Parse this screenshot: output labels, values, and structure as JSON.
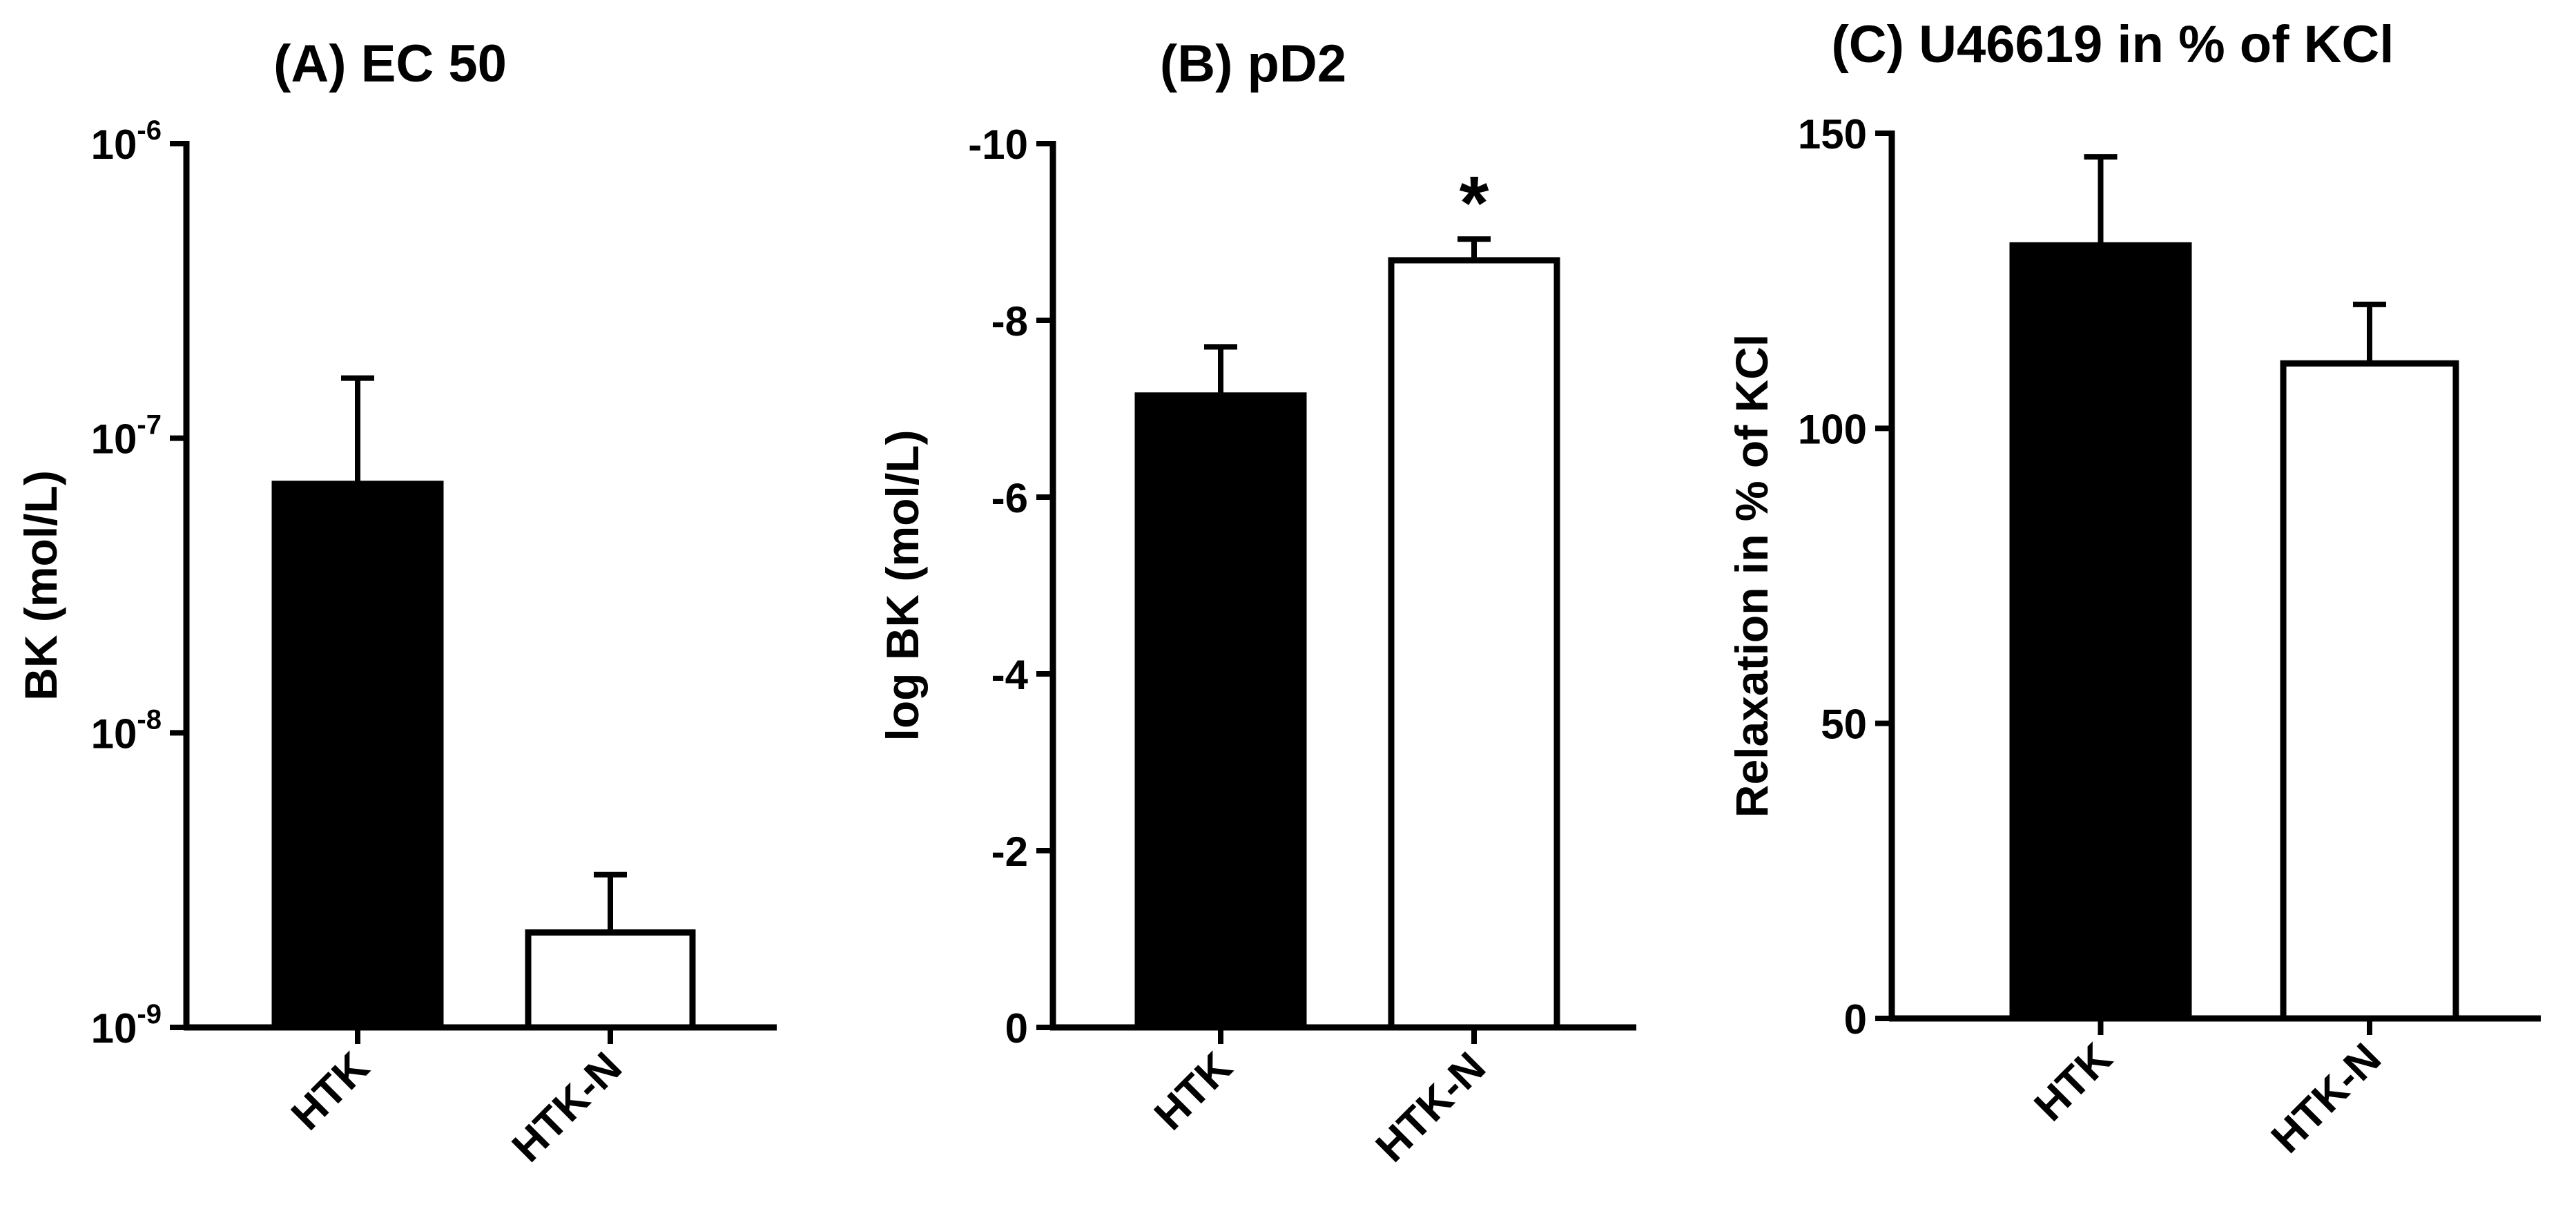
{
  "chart_data": [
    {
      "type": "bar",
      "title": "(A) EC 50",
      "xlabel": "",
      "ylabel": "BK (mol/L)",
      "yscale": "log",
      "ylim": [
        1e-09,
        1e-06
      ],
      "yticks": [
        {
          "value": 1e-09,
          "base": "10",
          "exp": "-9"
        },
        {
          "value": 1e-08,
          "base": "10",
          "exp": "-8"
        },
        {
          "value": 1e-07,
          "base": "10",
          "exp": "-7"
        },
        {
          "value": 1e-06,
          "base": "10",
          "exp": "-6"
        }
      ],
      "categories": [
        "HTK",
        "HTK-N"
      ],
      "values": [
        7e-08,
        2.1e-09
      ],
      "error_upper": [
        1.6e-07,
        3.3e-09
      ],
      "bar_fills": [
        "#000000",
        "#ffffff"
      ],
      "annotations": [
        null,
        null
      ]
    },
    {
      "type": "bar",
      "title": "(B) pD2",
      "xlabel": "",
      "ylabel": "log BK (mol/L)",
      "yscale": "linear",
      "ylim": [
        0,
        -10
      ],
      "yticks": [
        {
          "value": 0,
          "label": "0"
        },
        {
          "value": -2,
          "label": "-2"
        },
        {
          "value": -4,
          "label": "-4"
        },
        {
          "value": -6,
          "label": "-6"
        },
        {
          "value": -8,
          "label": "-8"
        },
        {
          "value": -10,
          "label": "-10"
        }
      ],
      "categories": [
        "HTK",
        "HTK-N"
      ],
      "values": [
        -7.15,
        -8.68
      ],
      "error_upper": [
        -7.7,
        -8.92
      ],
      "bar_fills": [
        "#000000",
        "#ffffff"
      ],
      "annotations": [
        null,
        "*"
      ]
    },
    {
      "type": "bar",
      "title": "(C) U46619 in % of KCl",
      "xlabel": "",
      "ylabel": "Relaxation in % of KCl",
      "yscale": "linear",
      "ylim": [
        0,
        150
      ],
      "yticks": [
        {
          "value": 0,
          "label": "0"
        },
        {
          "value": 50,
          "label": "50"
        },
        {
          "value": 100,
          "label": "100"
        },
        {
          "value": 150,
          "label": "150"
        }
      ],
      "categories": [
        "HTK",
        "HTK-N"
      ],
      "values": [
        131,
        111
      ],
      "error_upper": [
        146,
        121
      ],
      "bar_fills": [
        "#000000",
        "#ffffff"
      ],
      "annotations": [
        null,
        null
      ]
    }
  ]
}
